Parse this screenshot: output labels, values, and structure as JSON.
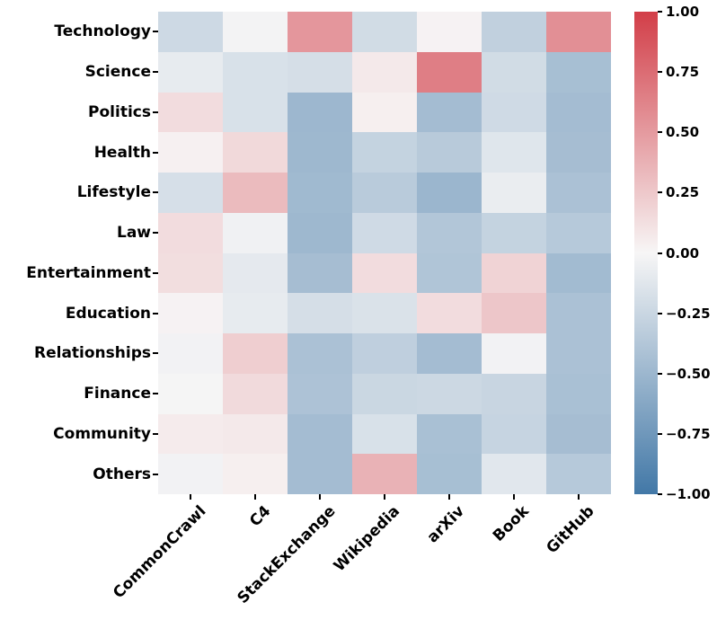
{
  "chart_data": {
    "type": "heatmap",
    "title": "",
    "xlabel": "",
    "ylabel": "",
    "columns": [
      "CommonCrawl",
      "C4",
      "StackExchange",
      "Wikipedia",
      "arXiv",
      "Book",
      "GitHub"
    ],
    "rows": [
      "Technology",
      "Science",
      "Politics",
      "Health",
      "Lifestyle",
      "Law",
      "Entertainment",
      "Education",
      "Relationships",
      "Finance",
      "Community",
      "Others"
    ],
    "values": [
      [
        -0.23,
        -0.02,
        0.52,
        -0.21,
        0.02,
        -0.3,
        0.56
      ],
      [
        -0.09,
        -0.17,
        -0.19,
        0.07,
        0.65,
        -0.21,
        -0.44
      ],
      [
        0.14,
        -0.17,
        -0.5,
        0.04,
        -0.46,
        -0.22,
        -0.46
      ],
      [
        0.03,
        0.16,
        -0.49,
        -0.28,
        -0.35,
        -0.13,
        -0.45
      ],
      [
        -0.18,
        0.32,
        -0.48,
        -0.34,
        -0.51,
        -0.07,
        -0.42
      ],
      [
        0.14,
        -0.04,
        -0.49,
        -0.22,
        -0.38,
        -0.28,
        -0.36
      ],
      [
        0.13,
        -0.1,
        -0.45,
        0.14,
        -0.39,
        0.19,
        -0.47
      ],
      [
        0.02,
        -0.09,
        -0.19,
        -0.16,
        0.14,
        0.26,
        -0.42
      ],
      [
        -0.03,
        0.22,
        -0.42,
        -0.31,
        -0.46,
        -0.03,
        -0.42
      ],
      [
        -0.01,
        0.15,
        -0.41,
        -0.25,
        -0.24,
        -0.26,
        -0.43
      ],
      [
        0.06,
        0.07,
        -0.46,
        -0.17,
        -0.43,
        -0.27,
        -0.45
      ],
      [
        -0.03,
        0.04,
        -0.46,
        0.37,
        -0.44,
        -0.12,
        -0.36
      ]
    ],
    "value_range": [
      -1,
      1
    ],
    "grid": false,
    "colors": {
      "positive_max": "#d23e48",
      "zero": "#f7f6f6",
      "negative_min": "#4278a7"
    },
    "colorbar": {
      "position": "right",
      "tick_labels": [
        "1.00",
        "0.75",
        "0.50",
        "0.25",
        "0.00",
        "−0.25",
        "−0.50",
        "−0.75",
        "−1.00"
      ],
      "tick_values": [
        1.0,
        0.75,
        0.5,
        0.25,
        0.0,
        -0.25,
        -0.5,
        -0.75,
        -1.0
      ]
    }
  }
}
